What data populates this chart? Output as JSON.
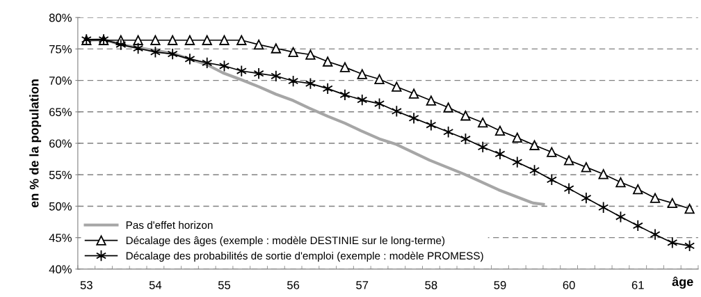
{
  "chart_data": {
    "type": "line",
    "xlabel": "âge",
    "ylabel": "en % de la population",
    "x": [
      53,
      53.25,
      53.5,
      53.75,
      54,
      54.25,
      54.5,
      54.75,
      55,
      55.25,
      55.5,
      55.75,
      56,
      56.25,
      56.5,
      56.75,
      57,
      57.25,
      57.5,
      57.75,
      58,
      58.25,
      58.5,
      58.75,
      59,
      59.25,
      59.5,
      59.75,
      60,
      60.25,
      60.5,
      60.75,
      61,
      61.25,
      61.5,
      61.75
    ],
    "series": [
      {
        "name": "Pas d'effet horizon",
        "color": "#a6a6a6",
        "marker": "none",
        "x": [
          53,
          53.25,
          53.5,
          53.75,
          53.98,
          54.25,
          54.5,
          54.75,
          54.98,
          55.25,
          55.5,
          55.75,
          56,
          56.23,
          56.5,
          56.75,
          56.98,
          57.25,
          57.48,
          57.98,
          58.48,
          58.98,
          59.48,
          59.63
        ],
        "values": [
          76.4,
          76.5,
          75.7,
          75.2,
          74.8,
          74.3,
          73.4,
          72.5,
          71.2,
          70.1,
          69.0,
          67.8,
          66.8,
          65.6,
          64.3,
          63.2,
          62.0,
          60.7,
          59.9,
          57.3,
          55.1,
          52.6,
          50.5,
          50.3
        ]
      },
      {
        "name": "Décalage des âges (exemple : modèle DESTINIE sur le long-terme)",
        "color": "#000000",
        "marker": "triangle",
        "values": [
          76.4,
          76.4,
          76.4,
          76.4,
          76.4,
          76.4,
          76.4,
          76.4,
          76.4,
          76.4,
          75.7,
          75.1,
          74.5,
          74.1,
          73.0,
          72.1,
          71.0,
          70.2,
          69.0,
          67.9,
          66.8,
          65.7,
          64.4,
          63.3,
          62.0,
          60.9,
          59.7,
          58.6,
          57.3,
          56.2,
          55.1,
          53.8,
          52.7,
          51.3,
          50.5,
          49.6
        ]
      },
      {
        "name": "Décalage des probabilités de sortie d'emploi (exemple : modèle PROMESS)",
        "color": "#000000",
        "marker": "cross",
        "values": [
          76.5,
          76.5,
          75.7,
          75.1,
          74.5,
          74.2,
          73.4,
          72.8,
          72.3,
          71.5,
          71.1,
          70.7,
          69.9,
          69.5,
          68.7,
          67.7,
          66.9,
          66.3,
          65.1,
          64.0,
          62.9,
          61.8,
          60.7,
          59.4,
          58.3,
          57.0,
          55.7,
          54.2,
          52.8,
          51.3,
          49.8,
          48.3,
          46.9,
          45.5,
          44.2,
          43.7
        ]
      }
    ],
    "xlim": [
      52.875,
      61.875
    ],
    "xticks": [
      {
        "value": 52.875,
        "label": null
      },
      53,
      {
        "value": 53.125,
        "label": null
      },
      {
        "value": 53.375,
        "label": null
      },
      {
        "value": 53.625,
        "label": null
      },
      {
        "value": 53.875,
        "label": null
      },
      54,
      {
        "value": 54.125,
        "label": null
      },
      {
        "value": 54.375,
        "label": null
      },
      {
        "value": 54.625,
        "label": null
      },
      {
        "value": 54.875,
        "label": null
      },
      55,
      {
        "value": 55.125,
        "label": null
      },
      {
        "value": 55.375,
        "label": null
      },
      {
        "value": 55.625,
        "label": null
      },
      {
        "value": 55.875,
        "label": null
      },
      56,
      {
        "value": 56.125,
        "label": null
      },
      {
        "value": 56.375,
        "label": null
      },
      {
        "value": 56.625,
        "label": null
      },
      {
        "value": 56.875,
        "label": null
      },
      57,
      {
        "value": 57.125,
        "label": null
      },
      {
        "value": 57.375,
        "label": null
      },
      {
        "value": 57.625,
        "label": null
      },
      {
        "value": 57.875,
        "label": null
      },
      58,
      {
        "value": 58.125,
        "label": null
      },
      {
        "value": 58.375,
        "label": null
      },
      {
        "value": 58.625,
        "label": null
      },
      {
        "value": 58.875,
        "label": null
      },
      59,
      {
        "value": 59.125,
        "label": null
      },
      {
        "value": 59.375,
        "label": null
      },
      {
        "value": 59.625,
        "label": null
      },
      {
        "value": 59.875,
        "label": null
      },
      60,
      {
        "value": 60.125,
        "label": null
      },
      {
        "value": 60.375,
        "label": null
      },
      {
        "value": 60.625,
        "label": null
      },
      {
        "value": 60.875,
        "label": null
      },
      61,
      {
        "value": 61.125,
        "label": null
      },
      {
        "value": 61.375,
        "label": null
      },
      {
        "value": 61.625,
        "label": null
      },
      {
        "value": 61.875,
        "label": null
      }
    ],
    "ylim": [
      40,
      80
    ],
    "yticks": [
      {
        "value": 40,
        "label": "40%"
      },
      {
        "value": 45,
        "label": "45%"
      },
      {
        "value": 50,
        "label": "50%"
      },
      {
        "value": 55,
        "label": "55%"
      },
      {
        "value": 60,
        "label": "60%"
      },
      {
        "value": 65,
        "label": "65%"
      },
      {
        "value": 70,
        "label": "70%"
      },
      {
        "value": 75,
        "label": "75%"
      },
      {
        "value": 80,
        "label": "80%"
      }
    ],
    "grid": "y",
    "legend": "bottom left",
    "line_style": "solid"
  }
}
